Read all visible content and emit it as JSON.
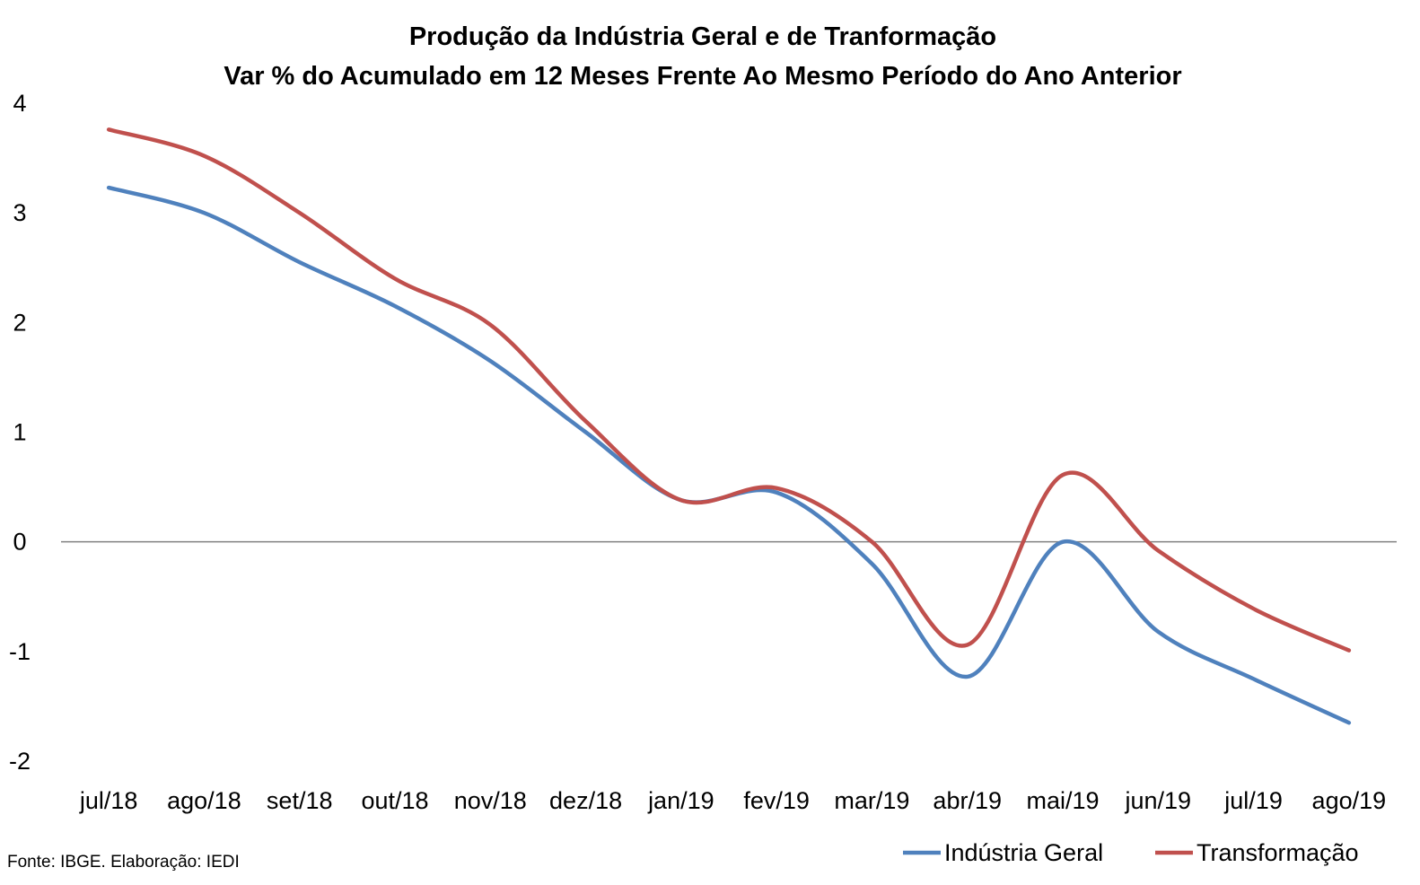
{
  "chart_data": {
    "type": "line",
    "title": "Produção da Indústria Geral e de Tranformação",
    "subtitle": "Var % do Acumulado em 12 Meses Frente Ao Mesmo Período do Ano Anterior",
    "xlabel": "",
    "ylabel": "",
    "categories": [
      "jul/18",
      "ago/18",
      "set/18",
      "out/18",
      "nov/18",
      "dez/18",
      "jan/19",
      "fev/19",
      "mar/19",
      "abr/19",
      "mai/19",
      "jun/19",
      "jul/19",
      "ago/19"
    ],
    "ylim": [
      -2,
      4
    ],
    "yticks": [
      4,
      3,
      2,
      1,
      0,
      -1,
      -2
    ],
    "grid": false,
    "legend_position": "bottom-right",
    "series": [
      {
        "name": "Indústria Geral",
        "color": "#4f81bd",
        "values": [
          3.23,
          3.0,
          2.55,
          2.15,
          1.65,
          1.0,
          0.38,
          0.45,
          -0.2,
          -1.23,
          0.0,
          -0.82,
          -1.25,
          -1.65
        ]
      },
      {
        "name": "Transformação",
        "color": "#c0504d",
        "values": [
          3.76,
          3.52,
          3.0,
          2.4,
          1.98,
          1.1,
          0.38,
          0.49,
          0.0,
          -0.94,
          0.61,
          -0.08,
          -0.61,
          -0.99
        ]
      }
    ],
    "source": "Fonte: IBGE. Elaboração: IEDI"
  }
}
